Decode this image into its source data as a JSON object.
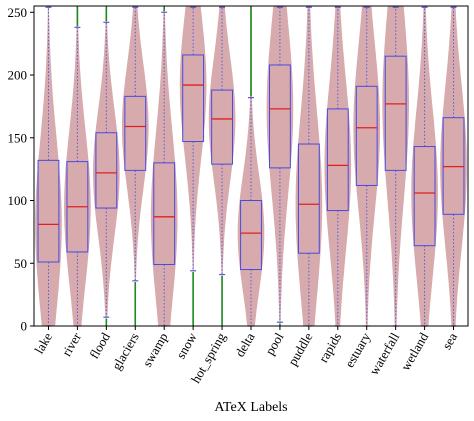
{
  "chart_data": {
    "type": "violin-box",
    "title": "",
    "xlabel": "ATeX Labels",
    "ylabel": "",
    "ylim": [
      0,
      255
    ],
    "yticks": [
      0,
      50,
      100,
      150,
      200,
      250
    ],
    "grid": false,
    "legend": "none",
    "colors": {
      "violin_fill": "#d4a3a6",
      "box_edge": "#4a4ae0",
      "median": "#e02020",
      "whisker": "#5a5ad8",
      "outlier": "#1a8a1a"
    },
    "categories": [
      "lake",
      "river",
      "flood",
      "glaciers",
      "swamp",
      "snow",
      "hot_spring",
      "delta",
      "pool",
      "puddle",
      "rapids",
      "estuary",
      "waterfall",
      "wetland",
      "sea"
    ],
    "boxes": [
      {
        "label": "lake",
        "q1": 51,
        "median": 81,
        "q3": 132,
        "whisker_low": 0,
        "whisker_high": 254,
        "outliers": []
      },
      {
        "label": "river",
        "q1": 59,
        "median": 95,
        "q3": 131,
        "whisker_low": 0,
        "whisker_high": 238,
        "outliers": [
          [
            239,
            255
          ]
        ]
      },
      {
        "label": "flood",
        "q1": 94,
        "median": 122,
        "q3": 154,
        "whisker_low": 7,
        "whisker_high": 242,
        "outliers": [
          [
            0,
            6
          ],
          [
            243,
            255
          ]
        ]
      },
      {
        "label": "glaciers",
        "q1": 124,
        "median": 159,
        "q3": 183,
        "whisker_low": 36,
        "whisker_high": 254,
        "outliers": [
          [
            0,
            35
          ]
        ]
      },
      {
        "label": "swamp",
        "q1": 49,
        "median": 87,
        "q3": 130,
        "whisker_low": 0,
        "whisker_high": 250,
        "outliers": [
          [
            251,
            255
          ]
        ]
      },
      {
        "label": "snow",
        "q1": 147,
        "median": 192,
        "q3": 216,
        "whisker_low": 44,
        "whisker_high": 254,
        "outliers": [
          [
            0,
            43
          ]
        ]
      },
      {
        "label": "hot_spring",
        "q1": 129,
        "median": 165,
        "q3": 188,
        "whisker_low": 41,
        "whisker_high": 254,
        "outliers": [
          [
            0,
            40
          ]
        ]
      },
      {
        "label": "delta",
        "q1": 45,
        "median": 74,
        "q3": 100,
        "whisker_low": 0,
        "whisker_high": 182,
        "outliers": [
          [
            183,
            255
          ]
        ]
      },
      {
        "label": "pool",
        "q1": 126,
        "median": 173,
        "q3": 208,
        "whisker_low": 3,
        "whisker_high": 254,
        "outliers": [
          [
            0,
            2
          ]
        ]
      },
      {
        "label": "puddle",
        "q1": 58,
        "median": 97,
        "q3": 145,
        "whisker_low": 0,
        "whisker_high": 254,
        "outliers": []
      },
      {
        "label": "rapids",
        "q1": 92,
        "median": 128,
        "q3": 173,
        "whisker_low": 0,
        "whisker_high": 254,
        "outliers": []
      },
      {
        "label": "estuary",
        "q1": 112,
        "median": 158,
        "q3": 191,
        "whisker_low": 0,
        "whisker_high": 254,
        "outliers": []
      },
      {
        "label": "waterfall",
        "q1": 124,
        "median": 177,
        "q3": 215,
        "whisker_low": 0,
        "whisker_high": 254,
        "outliers": []
      },
      {
        "label": "wetland",
        "q1": 64,
        "median": 106,
        "q3": 143,
        "whisker_low": 0,
        "whisker_high": 254,
        "outliers": []
      },
      {
        "label": "sea",
        "q1": 89,
        "median": 127,
        "q3": 166,
        "whisker_low": 0,
        "whisker_high": 254,
        "outliers": []
      }
    ]
  }
}
